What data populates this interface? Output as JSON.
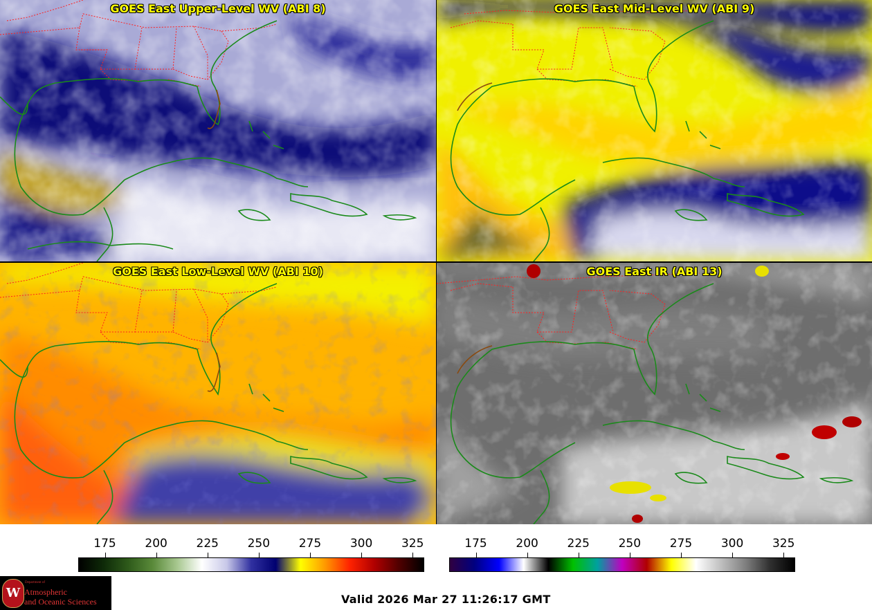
{
  "panels": [
    {
      "title": "GOES East Upper-Level WV (ABI 8)",
      "palette": "wv-upper"
    },
    {
      "title": "GOES East Mid-Level WV (ABI 9)",
      "palette": "wv-mid"
    },
    {
      "title": "GOES East Low-Level WV (ABI 10)",
      "palette": "wv-low"
    },
    {
      "title": "GOES East IR (ABI 13)",
      "palette": "ir"
    }
  ],
  "colorbars": [
    {
      "ticks": [
        "175",
        "200",
        "225",
        "250",
        "275",
        "300",
        "325"
      ],
      "tick_values": [
        175,
        200,
        225,
        250,
        275,
        300,
        325
      ],
      "range": [
        162,
        330
      ],
      "gradient": [
        "#000000",
        "#0e2a08",
        "#2e5a1a",
        "#5a8a3a",
        "#a8c890",
        "#ffffff",
        "#c8c8e8",
        "#3030a0",
        "#000070",
        "#ffff00",
        "#ff9900",
        "#ff2200",
        "#b00000",
        "#500000",
        "#000000"
      ]
    },
    {
      "ticks": [
        "175",
        "200",
        "225",
        "250",
        "275",
        "300",
        "325"
      ],
      "tick_values": [
        175,
        200,
        225,
        250,
        275,
        300,
        325
      ],
      "range": [
        162,
        330
      ],
      "gradient": [
        "#300040",
        "#000080",
        "#0000ff",
        "#ffffff",
        "#000000",
        "#00c000",
        "#00a0a0",
        "#c000c0",
        "#b00000",
        "#ffff00",
        "#ffffff",
        "#c0c0c0",
        "#808080",
        "#303030",
        "#000000"
      ]
    }
  ],
  "logo": {
    "dept": "Department of",
    "line1": "Atmospheric",
    "line2": "and Oceanic Sciences",
    "seal": "W"
  },
  "valid_time": "Valid 2026 Mar 27 11:26:17 GMT",
  "colors": {
    "coast": "#1a8a1a",
    "state_border": "#ff2020",
    "title": "#ffff00"
  }
}
